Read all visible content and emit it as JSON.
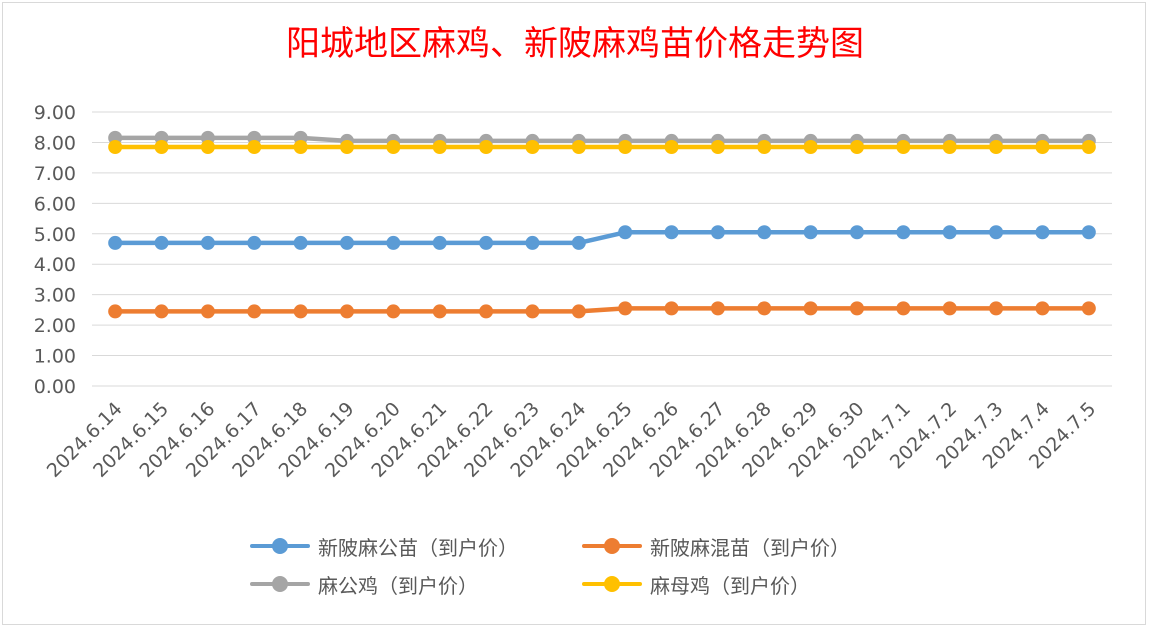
{
  "chart_data": {
    "type": "line",
    "title": "阳城地区麻鸡、新陂麻鸡苗价格走势图",
    "categories": [
      "2024.6.14",
      "2024.6.15",
      "2024.6.16",
      "2024.6.17",
      "2024.6.18",
      "2024.6.19",
      "2024.6.20",
      "2024.6.21",
      "2024.6.22",
      "2024.6.23",
      "2024.6.24",
      "2024.6.25",
      "2024.6.26",
      "2024.6.27",
      "2024.6.28",
      "2024.6.29",
      "2024.6.30",
      "2024.7.1",
      "2024.7.2",
      "2024.7.3",
      "2024.7.4",
      "2024.7.5"
    ],
    "y_ticks": [
      "0.00",
      "1.00",
      "2.00",
      "3.00",
      "4.00",
      "5.00",
      "6.00",
      "7.00",
      "8.00",
      "9.00"
    ],
    "ylim": [
      0,
      9
    ],
    "grid": true,
    "legend_position": "bottom",
    "series": [
      {
        "name": "新陂麻公苗（到户价）",
        "color": "#5b9bd5",
        "values": [
          4.7,
          4.7,
          4.7,
          4.7,
          4.7,
          4.7,
          4.7,
          4.7,
          4.7,
          4.7,
          4.7,
          5.05,
          5.05,
          5.05,
          5.05,
          5.05,
          5.05,
          5.05,
          5.05,
          5.05,
          5.05,
          5.05
        ]
      },
      {
        "name": "新陂麻混苗（到户价）",
        "color": "#ed7d31",
        "values": [
          2.45,
          2.45,
          2.45,
          2.45,
          2.45,
          2.45,
          2.45,
          2.45,
          2.45,
          2.45,
          2.45,
          2.55,
          2.55,
          2.55,
          2.55,
          2.55,
          2.55,
          2.55,
          2.55,
          2.55,
          2.55,
          2.55
        ]
      },
      {
        "name": "麻公鸡（到户价）",
        "color": "#a5a5a5",
        "values": [
          8.15,
          8.15,
          8.15,
          8.15,
          8.15,
          8.05,
          8.05,
          8.05,
          8.05,
          8.05,
          8.05,
          8.05,
          8.05,
          8.05,
          8.05,
          8.05,
          8.05,
          8.05,
          8.05,
          8.05,
          8.05,
          8.05
        ]
      },
      {
        "name": "麻母鸡（到户价）",
        "color": "#ffc000",
        "values": [
          7.85,
          7.85,
          7.85,
          7.85,
          7.85,
          7.85,
          7.85,
          7.85,
          7.85,
          7.85,
          7.85,
          7.85,
          7.85,
          7.85,
          7.85,
          7.85,
          7.85,
          7.85,
          7.85,
          7.85,
          7.85,
          7.85
        ]
      }
    ]
  }
}
